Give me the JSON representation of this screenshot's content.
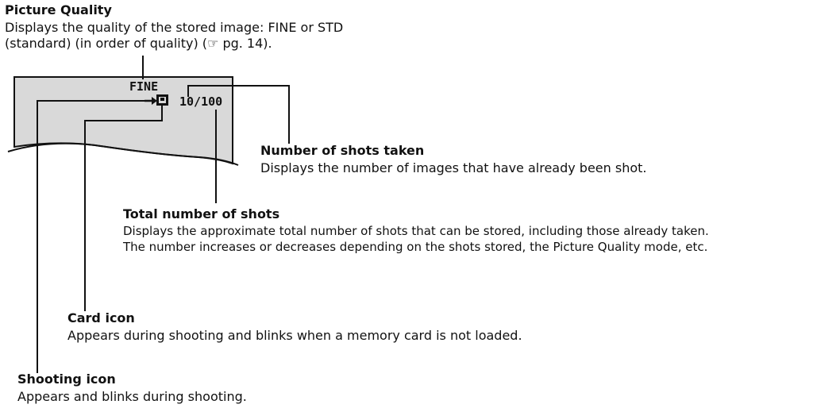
{
  "colors": {
    "lcd_screen": "#d9d9d9",
    "text": "#111111"
  },
  "screen": {
    "quality": "FINE",
    "counter": "10/100"
  },
  "icons": {
    "shooting": "arrow-right-icon",
    "card": "memory-card-icon"
  },
  "picture_quality": {
    "title": "Picture Quality",
    "line1": "Displays the quality of the stored image: FINE or STD",
    "line2": "(standard) (in order of quality) (☞ pg. 14)."
  },
  "shots_taken": {
    "title": "Number of shots taken",
    "line1": "Displays the number of images that have already been shot."
  },
  "total_shots": {
    "title": "Total number of shots",
    "line1": "Displays the approximate total number of shots that can be stored, including those already taken.",
    "line2": "The number increases or decreases depending on the shots stored, the Picture Quality mode, etc."
  },
  "card_icon": {
    "title": "Card icon",
    "line1": "Appears during shooting and blinks when a memory card is not loaded."
  },
  "shooting_icon": {
    "title": "Shooting icon",
    "line1": "Appears and blinks during shooting."
  }
}
